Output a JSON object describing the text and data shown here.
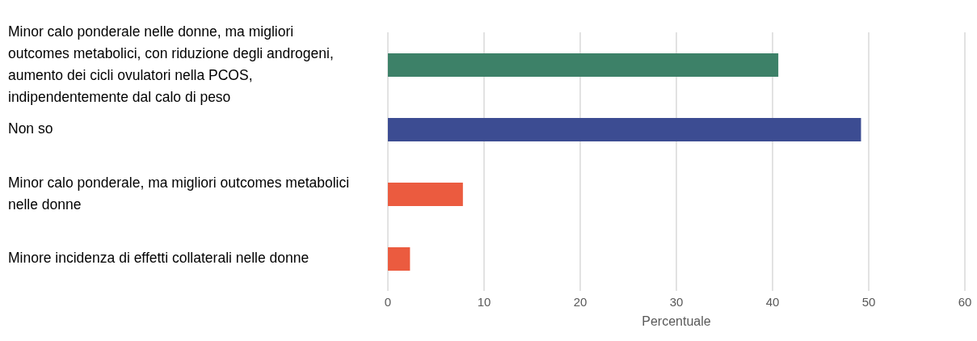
{
  "chart_data": {
    "type": "bar",
    "orientation": "horizontal",
    "categories": [
      "Minor calo ponderale nelle donne, ma migliori outcomes metabolici, con riduzione degli androgeni, aumento dei cicli ovulatori nella PCOS, indipendentemente dal calo di peso",
      "Non so",
      "Minor calo ponderale, ma migliori outcomes metabolici nelle donne",
      "Minore incidenza di effetti collaterali nelle donne"
    ],
    "values": [
      40.6,
      49.2,
      7.8,
      2.3
    ],
    "colors": [
      "#3d8168",
      "#3c4c92",
      "#eb5b3f",
      "#eb5b3f"
    ],
    "xlabel": "Percentuale",
    "xlim": [
      0,
      60
    ],
    "xticks": [
      0,
      10,
      20,
      30,
      40,
      50,
      60
    ],
    "grid": "x"
  }
}
